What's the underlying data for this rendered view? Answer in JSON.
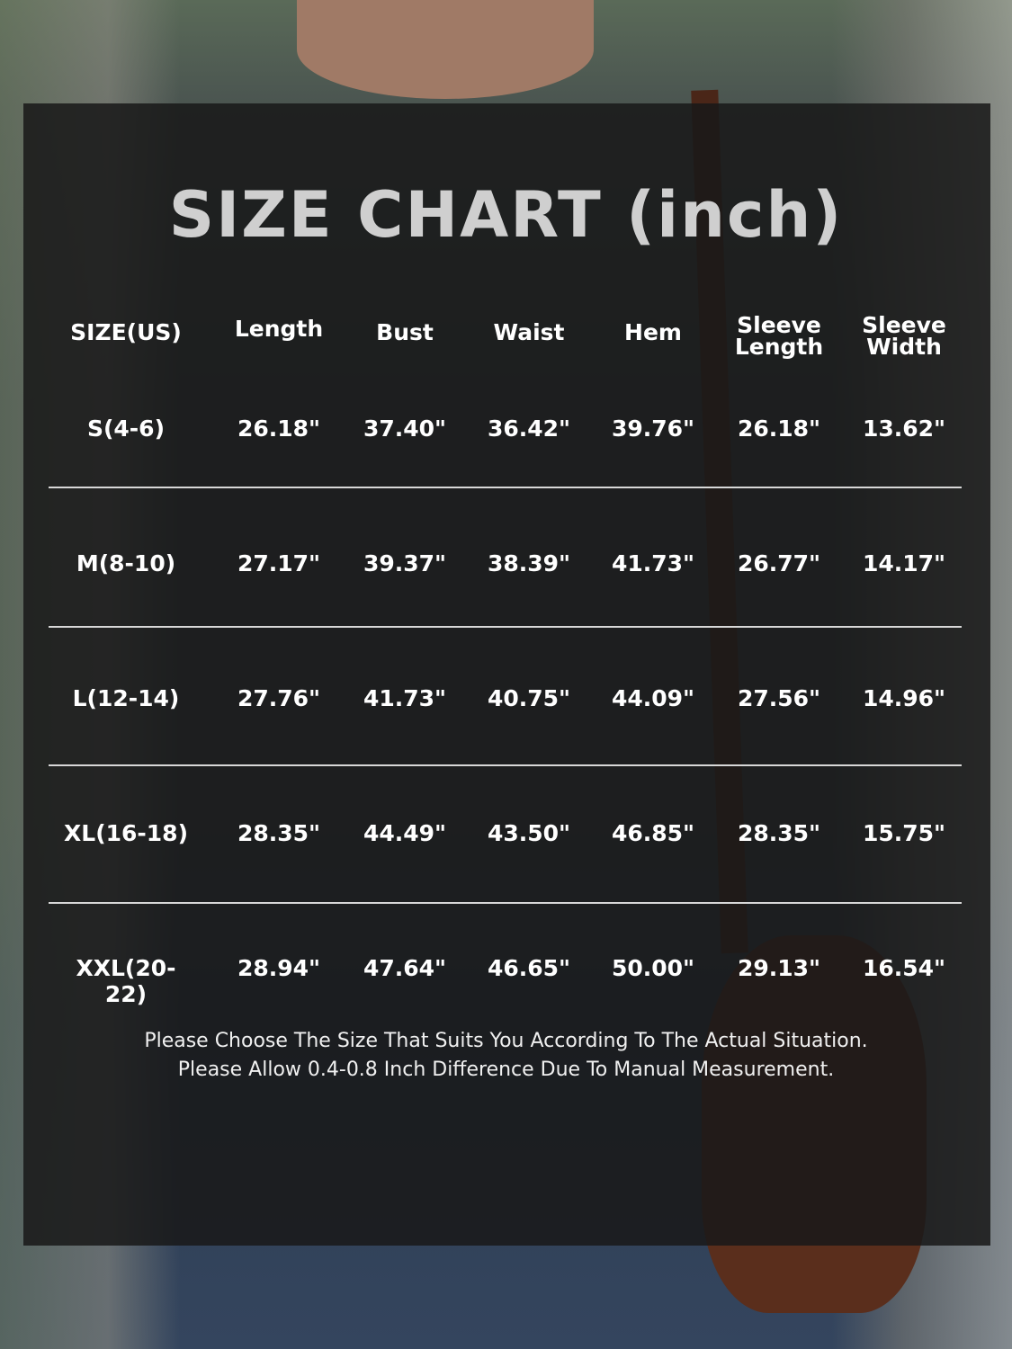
{
  "title": "SIZE CHART (inch)",
  "chart_data": {
    "type": "table",
    "title": "SIZE CHART (inch)",
    "columns": [
      "SIZE(US)",
      "Length",
      "Bust",
      "Waist",
      "Hem",
      "Sleeve Length",
      "Sleeve Width"
    ],
    "rows": [
      [
        "S(4-6)",
        "26.18\"",
        "37.40\"",
        "36.42\"",
        "39.76\"",
        "26.18\"",
        "13.62\""
      ],
      [
        "M(8-10)",
        "27.17\"",
        "39.37\"",
        "38.39\"",
        "41.73\"",
        "26.77\"",
        "14.17\""
      ],
      [
        "L(12-14)",
        "27.76\"",
        "41.73\"",
        "40.75\"",
        "44.09\"",
        "27.56\"",
        "14.96\""
      ],
      [
        "XL(16-18)",
        "28.35\"",
        "44.49\"",
        "43.50\"",
        "46.85\"",
        "28.35\"",
        "15.75\""
      ],
      [
        "XXL(20-22)",
        "28.94\"",
        "47.64\"",
        "46.65\"",
        "50.00\"",
        "29.13\"",
        "16.54\""
      ]
    ]
  },
  "notes": [
    "Please Choose The Size That Suits You According To The Actual Situation.",
    "Please Allow 0.4-0.8 Inch Difference Due To Manual Measurement."
  ]
}
